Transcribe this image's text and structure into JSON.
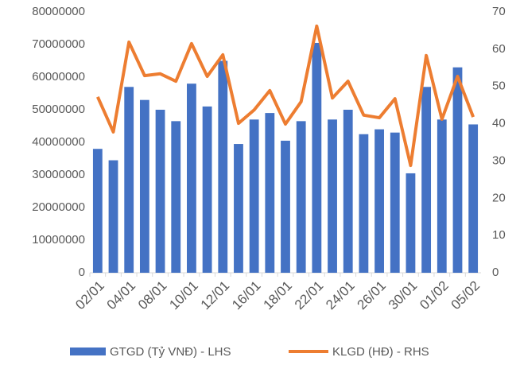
{
  "chart_data": {
    "type": "bar-line",
    "categories": [
      "02/01",
      null,
      "04/01",
      null,
      "08/01",
      null,
      "10/01",
      null,
      "12/01",
      null,
      "16/01",
      null,
      "18/01",
      null,
      "22/01",
      null,
      "24/01",
      null,
      "26/01",
      null,
      "30/01",
      null,
      "01/02",
      null,
      "05/02"
    ],
    "series": [
      {
        "name": "GTGD (Tỷ VNĐ) - LHS",
        "type": "bar",
        "color": "#4472c4",
        "values": [
          38000000,
          34500000,
          57000000,
          53000000,
          50000000,
          46500000,
          58000000,
          51000000,
          65000000,
          39500000,
          47000000,
          49000000,
          40500000,
          46500000,
          70500000,
          47000000,
          50000000,
          42500000,
          44000000,
          43000000,
          30500000,
          57000000,
          47000000,
          63000000,
          45500000
        ]
      },
      {
        "name": "KLGD (HĐ) - RHS",
        "type": "line",
        "axis": "y2",
        "color": "#ed7d31",
        "values": [
          47.2,
          37.8,
          61.9,
          52.9,
          53.4,
          51.4,
          61.5,
          52.7,
          58.5,
          40.1,
          43.7,
          48.9,
          39.9,
          45.9,
          66.2,
          46.9,
          51.4,
          42.3,
          41.6,
          46.7,
          28.8,
          58.3,
          41.2,
          52.7,
          41.8
        ]
      }
    ],
    "ylim": [
      0,
      80000000
    ],
    "yticks": [
      0,
      10000000,
      20000000,
      30000000,
      40000000,
      50000000,
      60000000,
      70000000,
      80000000
    ],
    "y2lim": [
      0,
      70
    ],
    "y2ticks": [
      0,
      10,
      20,
      30,
      40,
      50,
      60,
      70
    ],
    "grid": false,
    "legend": "bottom"
  }
}
